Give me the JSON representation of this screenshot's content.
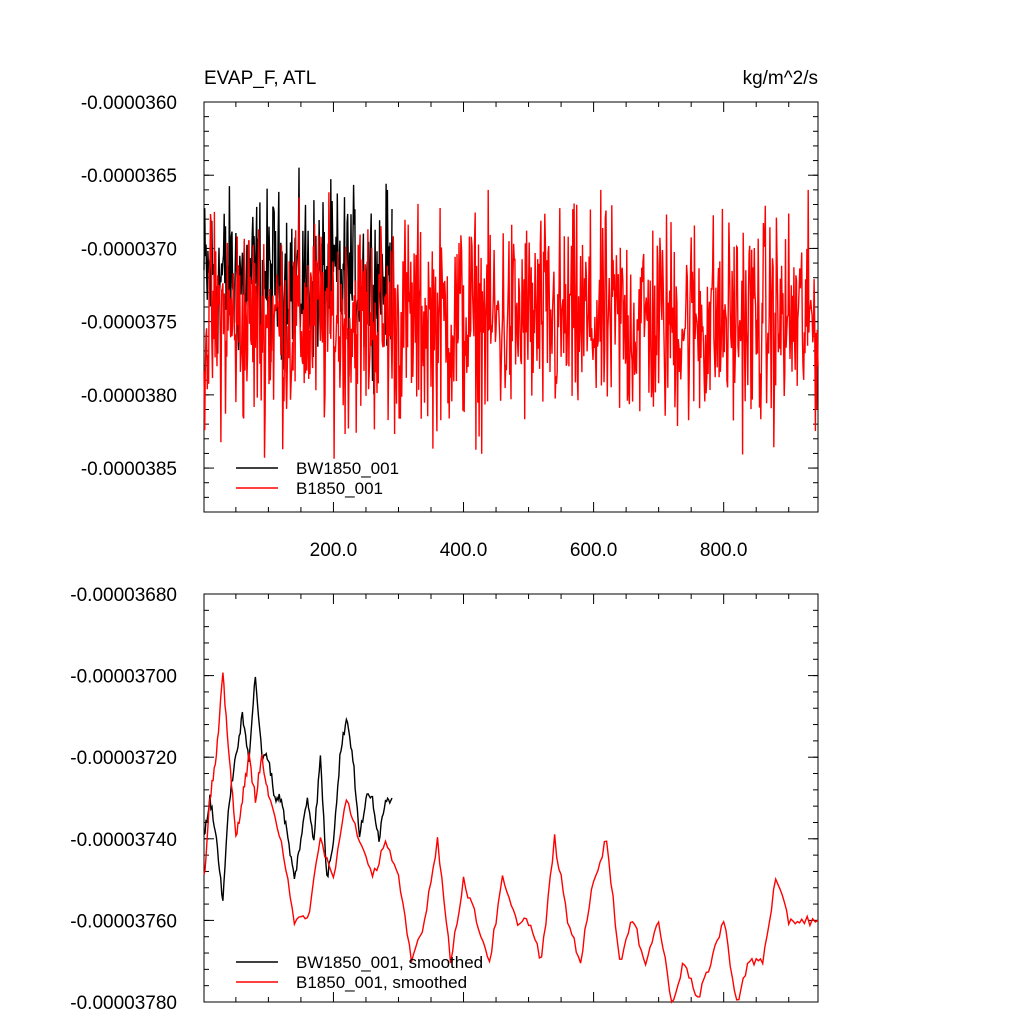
{
  "chart_data": [
    {
      "type": "line",
      "title_left": "EVAP_F, ATL",
      "title_right": "kg/m^2/s",
      "xlim": [
        1,
        945
      ],
      "ylim": [
        -3.88e-05,
        -3.6e-05
      ],
      "y_ticks": [
        -3.6e-05,
        -3.65e-05,
        -3.7e-05,
        -3.75e-05,
        -3.8e-05,
        -3.85e-05
      ],
      "y_tick_labels": [
        "-0.0000360",
        "-0.0000365",
        "-0.0000370",
        "-0.0000375",
        "-0.0000380",
        "-0.0000385"
      ],
      "x_ticks": [
        200,
        400,
        600,
        800
      ],
      "x_tick_labels": [
        "200.0",
        "400.0",
        "600.0",
        "800.0"
      ],
      "legend": "lower-left",
      "series": [
        {
          "name": "BW1850_001",
          "color": "#000000",
          "x_range": [
            1,
            290
          ],
          "mean": -3.72e-05,
          "noise": 3.5e-07,
          "min_observed": -3.83e-05,
          "max_observed": -3.64e-05
        },
        {
          "name": "B1850_001",
          "color": "#ff0000",
          "x_range": [
            1,
            945
          ],
          "mean": -3.75e-05,
          "noise": 4.5e-07,
          "min_observed": -3.85e-05,
          "max_observed": -3.66e-05
        }
      ]
    },
    {
      "type": "line",
      "xlim": [
        1,
        945
      ],
      "ylim": [
        -3.78e-05,
        -3.68e-05
      ],
      "y_ticks": [
        -3.68e-05,
        -3.7e-05,
        -3.72e-05,
        -3.74e-05,
        -3.76e-05,
        -3.78e-05
      ],
      "y_tick_labels": [
        "-0.00003680",
        "-0.00003700",
        "-0.00003720",
        "-0.00003740",
        "-0.00003760",
        "-0.00003780"
      ],
      "x_ticks": [
        200,
        400,
        600,
        800
      ],
      "legend": "lower-left",
      "series": [
        {
          "name": "BW1850_001, smoothed",
          "color": "#000000",
          "x": [
            1,
            10,
            20,
            30,
            40,
            50,
            60,
            70,
            80,
            90,
            100,
            110,
            120,
            130,
            140,
            150,
            160,
            170,
            180,
            190,
            200,
            210,
            220,
            230,
            240,
            250,
            260,
            270,
            280,
            290
          ],
          "y": [
            -3.74e-05,
            -3.73e-05,
            -3.74e-05,
            -3.755e-05,
            -3.73e-05,
            -3.72e-05,
            -3.71e-05,
            -3.72e-05,
            -3.7e-05,
            -3.72e-05,
            -3.72e-05,
            -3.73e-05,
            -3.73e-05,
            -3.74e-05,
            -3.75e-05,
            -3.74e-05,
            -3.73e-05,
            -3.74e-05,
            -3.72e-05,
            -3.75e-05,
            -3.74e-05,
            -3.72e-05,
            -3.71e-05,
            -3.72e-05,
            -3.74e-05,
            -3.73e-05,
            -3.73e-05,
            -3.74e-05,
            -3.73e-05,
            -3.73e-05
          ]
        },
        {
          "name": "B1850_001, smoothed",
          "color": "#ff0000",
          "x": [
            1,
            10,
            20,
            30,
            40,
            50,
            60,
            70,
            80,
            90,
            100,
            120,
            140,
            160,
            180,
            200,
            220,
            240,
            260,
            280,
            300,
            320,
            340,
            360,
            380,
            400,
            420,
            440,
            460,
            480,
            500,
            520,
            540,
            560,
            580,
            600,
            620,
            640,
            660,
            680,
            700,
            720,
            740,
            760,
            780,
            800,
            820,
            840,
            860,
            880,
            900,
            920,
            945
          ],
          "y": [
            -3.75e-05,
            -3.73e-05,
            -3.72e-05,
            -3.7e-05,
            -3.72e-05,
            -3.74e-05,
            -3.73e-05,
            -3.72e-05,
            -3.73e-05,
            -3.72e-05,
            -3.73e-05,
            -3.74e-05,
            -3.76e-05,
            -3.76e-05,
            -3.74e-05,
            -3.75e-05,
            -3.73e-05,
            -3.74e-05,
            -3.75e-05,
            -3.74e-05,
            -3.75e-05,
            -3.77e-05,
            -3.76e-05,
            -3.74e-05,
            -3.77e-05,
            -3.75e-05,
            -3.76e-05,
            -3.77e-05,
            -3.75e-05,
            -3.76e-05,
            -3.76e-05,
            -3.77e-05,
            -3.74e-05,
            -3.76e-05,
            -3.77e-05,
            -3.75e-05,
            -3.74e-05,
            -3.77e-05,
            -3.76e-05,
            -3.77e-05,
            -3.76e-05,
            -3.78e-05,
            -3.77e-05,
            -3.78e-05,
            -3.77e-05,
            -3.76e-05,
            -3.78e-05,
            -3.77e-05,
            -3.77e-05,
            -3.75e-05,
            -3.76e-05,
            -3.76e-05,
            -3.76e-05
          ]
        }
      ]
    }
  ]
}
